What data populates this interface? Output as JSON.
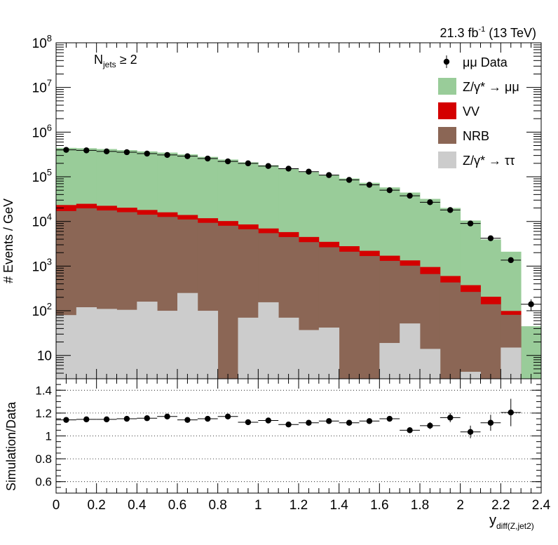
{
  "chart_data": [
    {
      "type": "bar",
      "stacked": true,
      "log_y": true,
      "title": "",
      "lumi_label": "21.3 fb",
      "lumi_sup": "-1",
      "lumi_energy": " (13 TeV)",
      "selection_main": "N",
      "selection_sub": "jets",
      "selection_rest": " ≥ 2",
      "ylabel": "# Events / GeV",
      "xlabel_main": "y",
      "xlabel_sub": "diff(Z,jet2)",
      "ylim": [
        3,
        100000000
      ],
      "xlim": [
        0,
        2.4
      ],
      "bin_edges": [
        0,
        0.1,
        0.2,
        0.3,
        0.4,
        0.5,
        0.6,
        0.7,
        0.8,
        0.9,
        1.0,
        1.1,
        1.2,
        1.3,
        1.4,
        1.5,
        1.6,
        1.7,
        1.8,
        1.9,
        2.0,
        2.1,
        2.2,
        2.3,
        2.4
      ],
      "y_ticks": [
        {
          "v": 10,
          "base": "10",
          "exp": ""
        },
        {
          "v": 100,
          "base": "10",
          "exp": "2"
        },
        {
          "v": 1000,
          "base": "10",
          "exp": "3"
        },
        {
          "v": 10000,
          "base": "10",
          "exp": "4"
        },
        {
          "v": 100000,
          "base": "10",
          "exp": "5"
        },
        {
          "v": 1000000,
          "base": "10",
          "exp": "6"
        },
        {
          "v": 10000000,
          "base": "10",
          "exp": "7"
        },
        {
          "v": 100000000,
          "base": "10",
          "exp": "8"
        }
      ],
      "series": [
        {
          "name": "Z/γ* → ττ",
          "color": "#cccccc",
          "values": [
            80,
            120,
            110,
            105,
            160,
            100,
            250,
            100,
            0,
            70,
            155,
            70,
            37,
            42,
            0,
            0,
            19,
            52,
            14,
            0,
            4.3,
            0,
            15,
            0
          ]
        },
        {
          "name": "NRB",
          "color": "#8b6655",
          "values": [
            17000,
            19500,
            17500,
            16000,
            14000,
            12500,
            10800,
            9200,
            8000,
            6600,
            5300,
            4400,
            3400,
            2600,
            2100,
            1680,
            1290,
            970,
            650,
            430,
            260,
            140,
            66,
            0
          ]
        },
        {
          "name": "VV",
          "color": "#d40000",
          "values": [
            6200,
            5200,
            4800,
            4200,
            3900,
            3400,
            2900,
            2500,
            2200,
            1900,
            1500,
            1300,
            1050,
            850,
            690,
            520,
            400,
            320,
            290,
            170,
            110,
            66,
            18,
            0
          ]
        },
        {
          "name": "Z/γ* → μμ",
          "color": "#99cc99",
          "values": [
            420000,
            410000,
            395000,
            375000,
            352000,
            332000,
            303000,
            267000,
            233000,
            202000,
            174000,
            148000,
            123000,
            106000,
            89000,
            71000,
            56000,
            43000,
            31000,
            19400,
            10100,
            3750,
            2000,
            45
          ]
        }
      ],
      "data": {
        "name": "μμ Data",
        "x": [
          0.05,
          0.15,
          0.25,
          0.35,
          0.45,
          0.55,
          0.65,
          0.75,
          0.85,
          0.95,
          1.05,
          1.15,
          1.25,
          1.35,
          1.45,
          1.55,
          1.65,
          1.75,
          1.85,
          1.95,
          2.05,
          2.15,
          2.25,
          2.35
        ],
        "y": [
          400000,
          390000,
          370000,
          355000,
          330000,
          308000,
          289000,
          256000,
          221000,
          200000,
          174000,
          152000,
          130000,
          109000,
          85000,
          66000,
          50000,
          37600,
          26900,
          18000,
          9000,
          4200,
          1360,
          140
        ],
        "err_lo": [
          0,
          0,
          0,
          0,
          0,
          0,
          0,
          0,
          0,
          0,
          0,
          0,
          0,
          0,
          0,
          0,
          0,
          0,
          0,
          0,
          0,
          0,
          0,
          40
        ],
        "err_hi": [
          0,
          0,
          0,
          0,
          0,
          0,
          0,
          0,
          0,
          0,
          0,
          0,
          0,
          0,
          0,
          0,
          0,
          0,
          0,
          0,
          0,
          0,
          0,
          40
        ]
      },
      "legend": [
        {
          "label": "μμ Data",
          "kind": "marker",
          "color": "#000000"
        },
        {
          "label": "Z/γ* → μμ",
          "kind": "box",
          "color": "#99cc99"
        },
        {
          "label": "VV",
          "kind": "box",
          "color": "#d40000"
        },
        {
          "label": "NRB",
          "kind": "box",
          "color": "#8b6655"
        },
        {
          "label": "Z/γ* → ττ",
          "kind": "box",
          "color": "#cccccc"
        }
      ]
    },
    {
      "type": "scatter",
      "title": "",
      "ylabel": "Simulation/Data",
      "ylim": [
        0.5,
        1.5
      ],
      "xlim": [
        0,
        2.4
      ],
      "grid": true,
      "grid_lines": [
        0.6,
        0.8,
        1.0,
        1.2,
        1.4
      ],
      "y_ticks": [
        "0.6",
        "0.8",
        "1",
        "1.2",
        "1.4"
      ],
      "x_ticks": [
        "0",
        "0.2",
        "0.4",
        "0.6",
        "0.8",
        "1",
        "1.2",
        "1.4",
        "1.6",
        "1.8",
        "2",
        "2.2",
        "2.4"
      ],
      "x": [
        0.05,
        0.15,
        0.25,
        0.35,
        0.45,
        0.55,
        0.65,
        0.75,
        0.85,
        0.95,
        1.05,
        1.15,
        1.25,
        1.35,
        1.45,
        1.55,
        1.65,
        1.75,
        1.85,
        1.95,
        2.05,
        2.15,
        2.25
      ],
      "y": [
        1.14,
        1.145,
        1.145,
        1.15,
        1.155,
        1.17,
        1.14,
        1.15,
        1.17,
        1.12,
        1.135,
        1.1,
        1.115,
        1.13,
        1.115,
        1.13,
        1.15,
        1.05,
        1.09,
        1.16,
        1.035,
        1.115,
        1.205
      ],
      "err": [
        0.012,
        0.012,
        0.012,
        0.012,
        0.012,
        0.012,
        0.012,
        0.012,
        0.012,
        0.012,
        0.012,
        0.012,
        0.012,
        0.012,
        0.012,
        0.012,
        0.02,
        0.025,
        0.03,
        0.04,
        0.055,
        0.07,
        0.12
      ]
    }
  ]
}
